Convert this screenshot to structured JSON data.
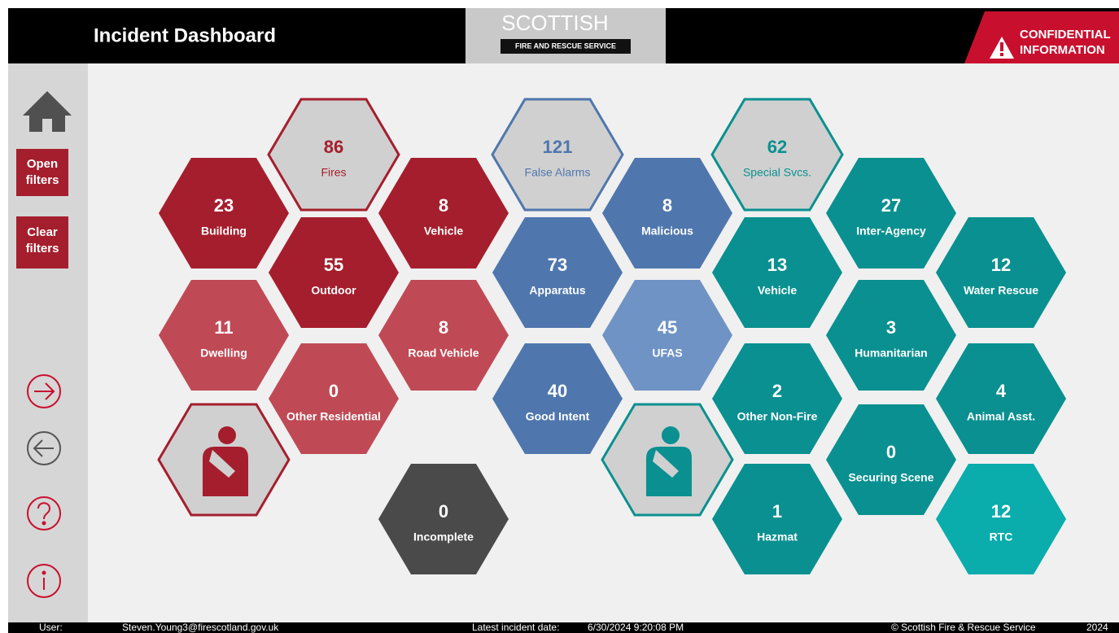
{
  "header": {
    "title": "Incident Dashboard",
    "logo_top": "SCOTTISH",
    "logo_bottom": "FIRE AND RESCUE SERVICE",
    "badge_top": "CONFIDENTIAL",
    "badge_bottom": "INFORMATION"
  },
  "sidebar": {
    "buttons": [
      {
        "line1": "Open",
        "line2": "filters"
      },
      {
        "line1": "Clear",
        "line2": "filters"
      }
    ]
  },
  "hexes": [
    {
      "value": "86",
      "label": "Fires"
    },
    {
      "value": "23",
      "label": "Building"
    },
    {
      "value": "8",
      "label": "Vehicle"
    },
    {
      "value": "55",
      "label": "Outdoor"
    },
    {
      "value": "11",
      "label": "Dwelling"
    },
    {
      "value": "8",
      "label": "Road Vehicle"
    },
    {
      "value": "0",
      "label": "Other Residential"
    },
    {
      "value": "0",
      "label": "Incomplete"
    },
    {
      "value": "121",
      "label": "False Alarms"
    },
    {
      "value": "8",
      "label": "Malicious"
    },
    {
      "value": "73",
      "label": "Apparatus"
    },
    {
      "value": "45",
      "label": "UFAS"
    },
    {
      "value": "40",
      "label": "Good Intent"
    },
    {
      "value": "62",
      "label": "Special Svcs."
    },
    {
      "value": "27",
      "label": "Inter-Agency"
    },
    {
      "value": "13",
      "label": "Vehicle"
    },
    {
      "value": "12",
      "label": "Water Rescue"
    },
    {
      "value": "3",
      "label": "Humanitarian"
    },
    {
      "value": "2",
      "label": "Other Non-Fire"
    },
    {
      "value": "4",
      "label": "Animal Asst."
    },
    {
      "value": "0",
      "label": "Securing Scene"
    },
    {
      "value": "1",
      "label": "Hazmat"
    },
    {
      "value": "12",
      "label": "RTC"
    }
  ],
  "footer": {
    "user_label": "User:",
    "user": "Steven.Young3@firescotland.gov.uk",
    "date_label": "Latest incident date:",
    "date": "6/30/2024 9:20:08 PM",
    "copyright": "© Scottish Fire & Rescue Service",
    "year": "2024"
  }
}
